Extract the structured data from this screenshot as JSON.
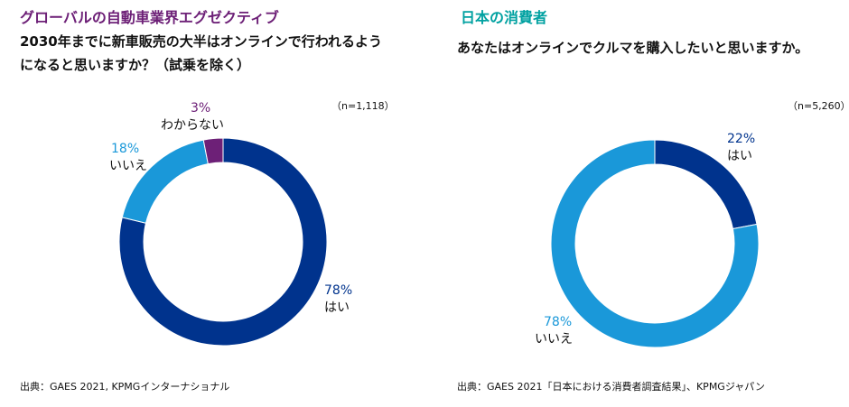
{
  "colors": {
    "purple": "#6d2077",
    "teal": "#00a1a1",
    "dark_blue": "#00338d",
    "light_blue": "#1a98d9",
    "text": "#111111"
  },
  "left": {
    "heading": "グローバルの自動車業界エグゼクティブ",
    "question_line1": "2030年までに新車販売の大半はオンラインで行われるよう",
    "question_line2": "になると思いますか？（試乗を除く）",
    "sample": "（n=1,118）",
    "source": "出典：GAES 2021, KPMGインターナショナル"
  },
  "right": {
    "heading": "日本の消費者",
    "question": "あなたはオンラインでクルマを購入したいと思いますか。",
    "sample": "（n=5,260）",
    "source": "出典：GAES 2021「日本における消費者調査結果」、KPMGジャパン"
  },
  "chart_data": [
    {
      "type": "pie",
      "style": "donut",
      "title": "2030年までに新車販売の大半はオンラインで行われるようになると思いますか？（試乗を除く）",
      "sample": "n=1,118",
      "slices": [
        {
          "label": "はい",
          "value": 78,
          "display": "78%",
          "color": "#00338d"
        },
        {
          "label": "いいえ",
          "value": 18,
          "display": "18%",
          "color": "#1a98d9"
        },
        {
          "label": "わからない",
          "value": 3,
          "display": "3%",
          "color": "#6d2077"
        }
      ]
    },
    {
      "type": "pie",
      "style": "donut",
      "title": "あなたはオンラインでクルマを購入したいと思いますか。",
      "sample": "n=5,260",
      "slices": [
        {
          "label": "はい",
          "value": 22,
          "display": "22%",
          "color": "#00338d"
        },
        {
          "label": "いいえ",
          "value": 78,
          "display": "78%",
          "color": "#1a98d9"
        }
      ]
    }
  ]
}
